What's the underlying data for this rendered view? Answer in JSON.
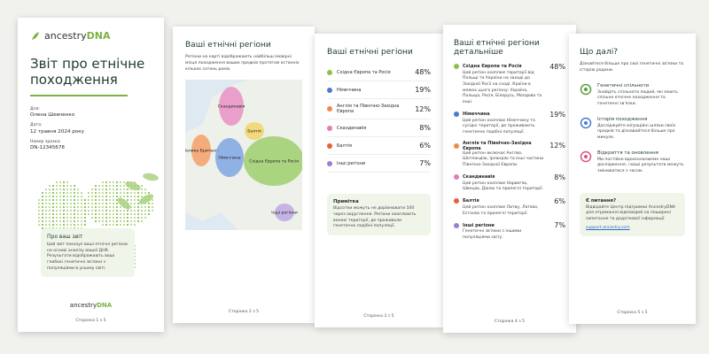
{
  "page1": {
    "logo": {
      "brand": "ancestry",
      "suffix": "DNA"
    },
    "title": "Звіт про етнічне походження",
    "fields": [
      {
        "label": "Для:",
        "value": "Олена Шевченко"
      },
      {
        "label": "Дата:",
        "value": "12 травня 2024 року"
      },
      {
        "label": "Номер зразка:",
        "value": "DN-12345678"
      }
    ],
    "about": {
      "title": "Про ваш звіт",
      "text": "Цей звіт показує ваші етнічні регіони на основі аналізу вашої ДНК. Результати відображають ваші глибокі генетичні зв'язки з популяціями в усьому світі."
    },
    "footer_logo": {
      "brand": "ancestry",
      "suffix": "DNA"
    },
    "footer": "Сторінка 1 з 5"
  },
  "page2": {
    "title": "Ваші етнічні регіони",
    "text": "Регіони на карті відображають найбільш імовірні місця походження ваших предків протягом останніх кількох сотень років.",
    "map_labels": [
      "Скандинавія",
      "Балтія",
      "Велика Британія",
      "Німеччина",
      "Східна Європа та Росія",
      "Інші регіони"
    ],
    "footer": "Сторінка 2 з 5"
  },
  "page3": {
    "title": "Ваші етнічні регіони",
    "regions": [
      {
        "name": "Східна Європа та Росія",
        "percent": "48%"
      },
      {
        "name": "Німеччина",
        "percent": "19%"
      },
      {
        "name": "Англія та Північно-Західна Європа",
        "percent": "12%"
      },
      {
        "name": "Скандинавія",
        "percent": "8%"
      },
      {
        "name": "Балтія",
        "percent": "6%"
      },
      {
        "name": "Інші регіони",
        "percent": "7%"
      }
    ],
    "note": {
      "title": "Примітка",
      "text": "Відсотки можуть не дорівнювати 100 через округлення. Регіони охоплюють великі території, де проживали генетично подібні популяції."
    },
    "footer": "Сторінка 3 з 5"
  },
  "page4": {
    "title": "Ваші етнічні регіони детальніше",
    "regions": [
      {
        "name": "Східна Європа та Росія",
        "percent": "48%",
        "text": "Цей регіон охоплює території від Польщі та України на заході до Західної Росії на сході. Країни в межах цього регіону: Україна, Польща, Росія, Білорусь, Молдова та інші."
      },
      {
        "name": "Німеччина",
        "percent": "19%",
        "text": "Цей регіон охоплює Німеччину та сусідні території, де проживають генетично подібні популяції."
      },
      {
        "name": "Англія та Північно-Західна Європа",
        "percent": "12%",
        "text": "Цей регіон включає Англію, Шотландію, Ірландію та інші частини Північно-Західної Європи."
      },
      {
        "name": "Скандинавія",
        "percent": "8%",
        "text": "Цей регіон охоплює Норвегію, Швецію, Данію та прилеглі території."
      },
      {
        "name": "Балтія",
        "percent": "6%",
        "text": "Цей регіон охоплює Литву, Латвію, Естонію та прилеглі території."
      },
      {
        "name": "Інші регіони",
        "percent": "7%",
        "text": "Генетичні зв'язки з іншими популяціями світу."
      }
    ],
    "footer": "Сторінка 4 з 5"
  },
  "page5": {
    "title": "Що далі?",
    "intro": "Дізнайтеся більше про свої генетичні зв'язки та історію родини.",
    "items": [
      {
        "title": "Генетичні спільноти",
        "text": "Знайдіть спільноти людей, які мають спільне етнічне походження та генетичні зв'язки."
      },
      {
        "title": "Історія походження",
        "text": "Досліджуйте міграційні шляхи своїх предків та дізнавайтеся більше про минуле."
      },
      {
        "title": "Відкриття та оновлення",
        "text": "Ми постійно вдосконалюємо наші дослідження, і ваші результати можуть змінюватися з часом."
      }
    ],
    "help": {
      "title": "Є питання?",
      "text": "Відвідайте Центр підтримки AncestryDNA для отримання відповідей на поширені запитання та додаткової інформації.",
      "link": "support.ancestry.com"
    },
    "footer": "Сторінка 5 з 5"
  }
}
